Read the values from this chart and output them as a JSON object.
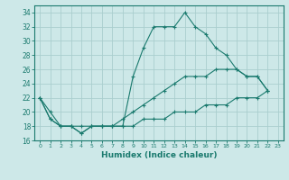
{
  "xlabel": "Humidex (Indice chaleur)",
  "xlim": [
    -0.5,
    23.5
  ],
  "ylim": [
    16,
    35
  ],
  "yticks": [
    16,
    18,
    20,
    22,
    24,
    26,
    28,
    30,
    32,
    34
  ],
  "xticks": [
    0,
    1,
    2,
    3,
    4,
    5,
    6,
    7,
    8,
    9,
    10,
    11,
    12,
    13,
    14,
    15,
    16,
    17,
    18,
    19,
    20,
    21,
    22,
    23
  ],
  "background_color": "#cde8e8",
  "grid_color": "#aacece",
  "line_color": "#1a7a6e",
  "line1": [
    22,
    19,
    18,
    18,
    17,
    18,
    18,
    18,
    18,
    25,
    29,
    32,
    32,
    32,
    34,
    32,
    31,
    29,
    28,
    26,
    25,
    25,
    23
  ],
  "line2": [
    22,
    20,
    18,
    18,
    18,
    18,
    18,
    18,
    19,
    20,
    21,
    22,
    23,
    24,
    25,
    25,
    25,
    26,
    26,
    26,
    25,
    25,
    23
  ],
  "line3": [
    22,
    19,
    18,
    18,
    17,
    18,
    18,
    18,
    18,
    18,
    19,
    19,
    19,
    20,
    20,
    20,
    21,
    21,
    21,
    22,
    22,
    22,
    23
  ],
  "hours": [
    0,
    1,
    2,
    3,
    4,
    5,
    6,
    7,
    8,
    9,
    10,
    11,
    12,
    13,
    14,
    15,
    16,
    17,
    18,
    19,
    20,
    21,
    22
  ]
}
